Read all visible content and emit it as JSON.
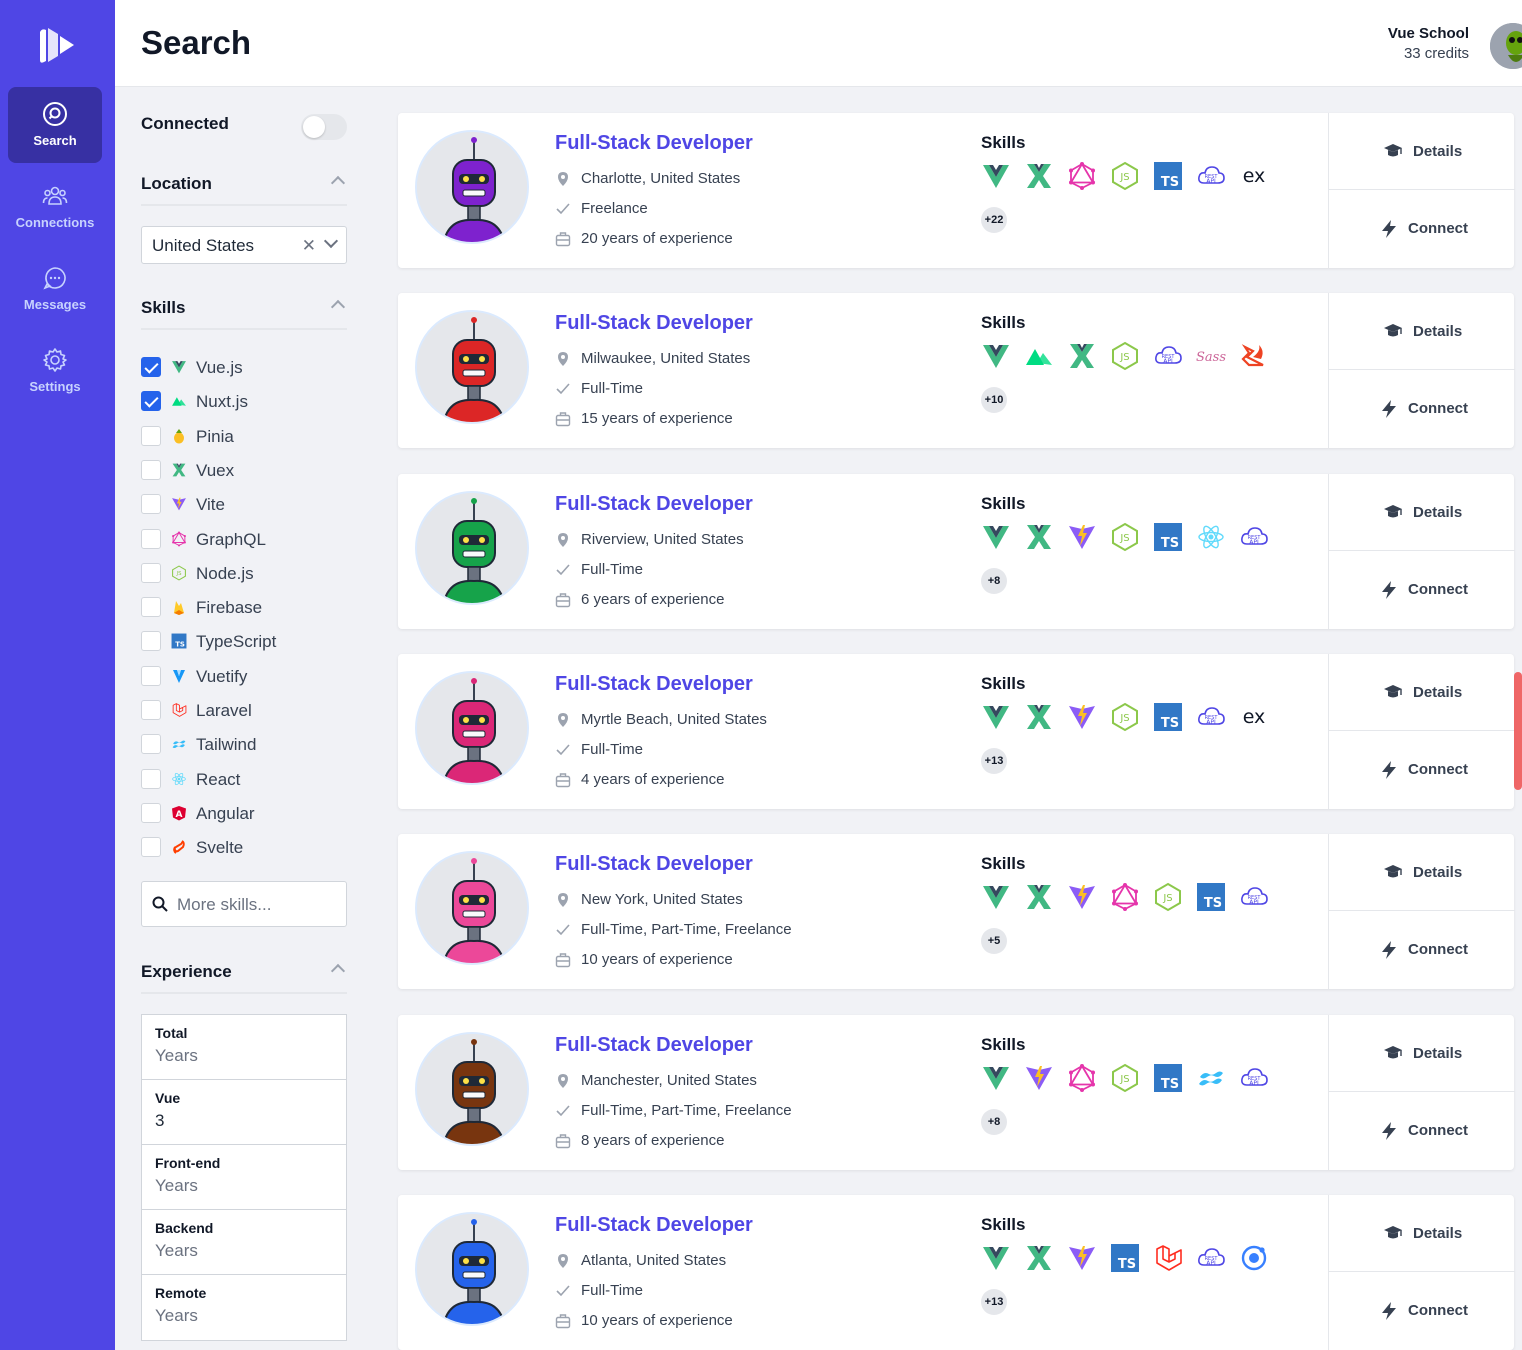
{
  "nav": {
    "items": [
      {
        "label": "Search",
        "icon": "search-icon",
        "active": true
      },
      {
        "label": "Connections",
        "icon": "people-icon",
        "active": false
      },
      {
        "label": "Messages",
        "icon": "chat-icon",
        "active": false
      },
      {
        "label": "Settings",
        "icon": "gear-icon",
        "active": false
      }
    ]
  },
  "header": {
    "title": "Search",
    "user_name": "Vue School",
    "credits": "33 credits"
  },
  "filters": {
    "connected_label": "Connected",
    "location_label": "Location",
    "location_value": "United States",
    "skills_label": "Skills",
    "skills": [
      {
        "name": "Vue.js",
        "checked": true,
        "icon": "vue-icon"
      },
      {
        "name": "Nuxt.js",
        "checked": true,
        "icon": "nuxt-icon"
      },
      {
        "name": "Pinia",
        "checked": false,
        "icon": "pinia-icon"
      },
      {
        "name": "Vuex",
        "checked": false,
        "icon": "vuex-icon"
      },
      {
        "name": "Vite",
        "checked": false,
        "icon": "vite-icon"
      },
      {
        "name": "GraphQL",
        "checked": false,
        "icon": "graphql-icon"
      },
      {
        "name": "Node.js",
        "checked": false,
        "icon": "nodejs-icon"
      },
      {
        "name": "Firebase",
        "checked": false,
        "icon": "firebase-icon"
      },
      {
        "name": "TypeScript",
        "checked": false,
        "icon": "typescript-icon"
      },
      {
        "name": "Vuetify",
        "checked": false,
        "icon": "vuetify-icon"
      },
      {
        "name": "Laravel",
        "checked": false,
        "icon": "laravel-icon"
      },
      {
        "name": "Tailwind",
        "checked": false,
        "icon": "tailwind-icon"
      },
      {
        "name": "React",
        "checked": false,
        "icon": "react-icon"
      },
      {
        "name": "Angular",
        "checked": false,
        "icon": "angular-icon"
      },
      {
        "name": "Svelte",
        "checked": false,
        "icon": "svelte-icon"
      }
    ],
    "more_skills_placeholder": "More skills...",
    "experience_label": "Experience",
    "experience": [
      {
        "label": "Total",
        "value": "Years",
        "filled": false
      },
      {
        "label": "Vue",
        "value": "3",
        "filled": true
      },
      {
        "label": "Front-end",
        "value": "Years",
        "filled": false
      },
      {
        "label": "Backend",
        "value": "Years",
        "filled": false
      },
      {
        "label": "Remote",
        "value": "Years",
        "filled": false
      }
    ]
  },
  "results": {
    "skills_heading": "Skills",
    "details_label": "Details",
    "connect_label": "Connect",
    "cards": [
      {
        "role": "Full-Stack Developer",
        "location": "Charlotte, United States",
        "type": "Freelance",
        "experience": "20 years of experience",
        "skills": [
          "vue",
          "vuex",
          "graphql",
          "nodejs",
          "typescript",
          "restapi",
          "express"
        ],
        "more": "+22",
        "avatar_color": "#7e22ce"
      },
      {
        "role": "Full-Stack Developer",
        "location": "Milwaukee, United States",
        "type": "Full-Time",
        "experience": "15 years of experience",
        "skills": [
          "vue",
          "nuxt",
          "vuex",
          "nodejs",
          "restapi",
          "sass",
          "codeigniter"
        ],
        "more": "+10",
        "avatar_color": "#dc2626"
      },
      {
        "role": "Full-Stack Developer",
        "location": "Riverview, United States",
        "type": "Full-Time",
        "experience": "6 years of experience",
        "skills": [
          "vue",
          "vuex",
          "vite",
          "nodejs",
          "typescript",
          "react",
          "restapi"
        ],
        "more": "+8",
        "avatar_color": "#16a34a"
      },
      {
        "role": "Full-Stack Developer",
        "location": "Myrtle Beach, United States",
        "type": "Full-Time",
        "experience": "4 years of experience",
        "skills": [
          "vue",
          "vuex",
          "vite",
          "nodejs",
          "typescript",
          "restapi",
          "express"
        ],
        "more": "+13",
        "avatar_color": "#db2777"
      },
      {
        "role": "Full-Stack Developer",
        "location": "New York, United States",
        "type": "Full-Time, Part-Time, Freelance",
        "experience": "10 years of experience",
        "skills": [
          "vue",
          "vuex",
          "vite",
          "graphql",
          "nodejs",
          "typescript",
          "restapi"
        ],
        "more": "+5",
        "avatar_color": "#ec4899"
      },
      {
        "role": "Full-Stack Developer",
        "location": "Manchester, United States",
        "type": "Full-Time, Part-Time, Freelance",
        "experience": "8 years of experience",
        "skills": [
          "vue",
          "vite",
          "graphql",
          "nodejs",
          "typescript",
          "tailwind",
          "restapi"
        ],
        "more": "+8",
        "avatar_color": "#78350f"
      },
      {
        "role": "Full-Stack Developer",
        "location": "Atlanta, United States",
        "type": "Full-Time",
        "experience": "10 years of experience",
        "skills": [
          "vue",
          "vuex",
          "vite",
          "typescript",
          "laravel",
          "restapi",
          "ionic"
        ],
        "more": "+13",
        "avatar_color": "#2563eb"
      }
    ]
  },
  "colors": {
    "brand": "#4f46e5",
    "brand_dark": "#3730a3",
    "link": "#4f46e5",
    "checkbox": "#2563eb"
  }
}
